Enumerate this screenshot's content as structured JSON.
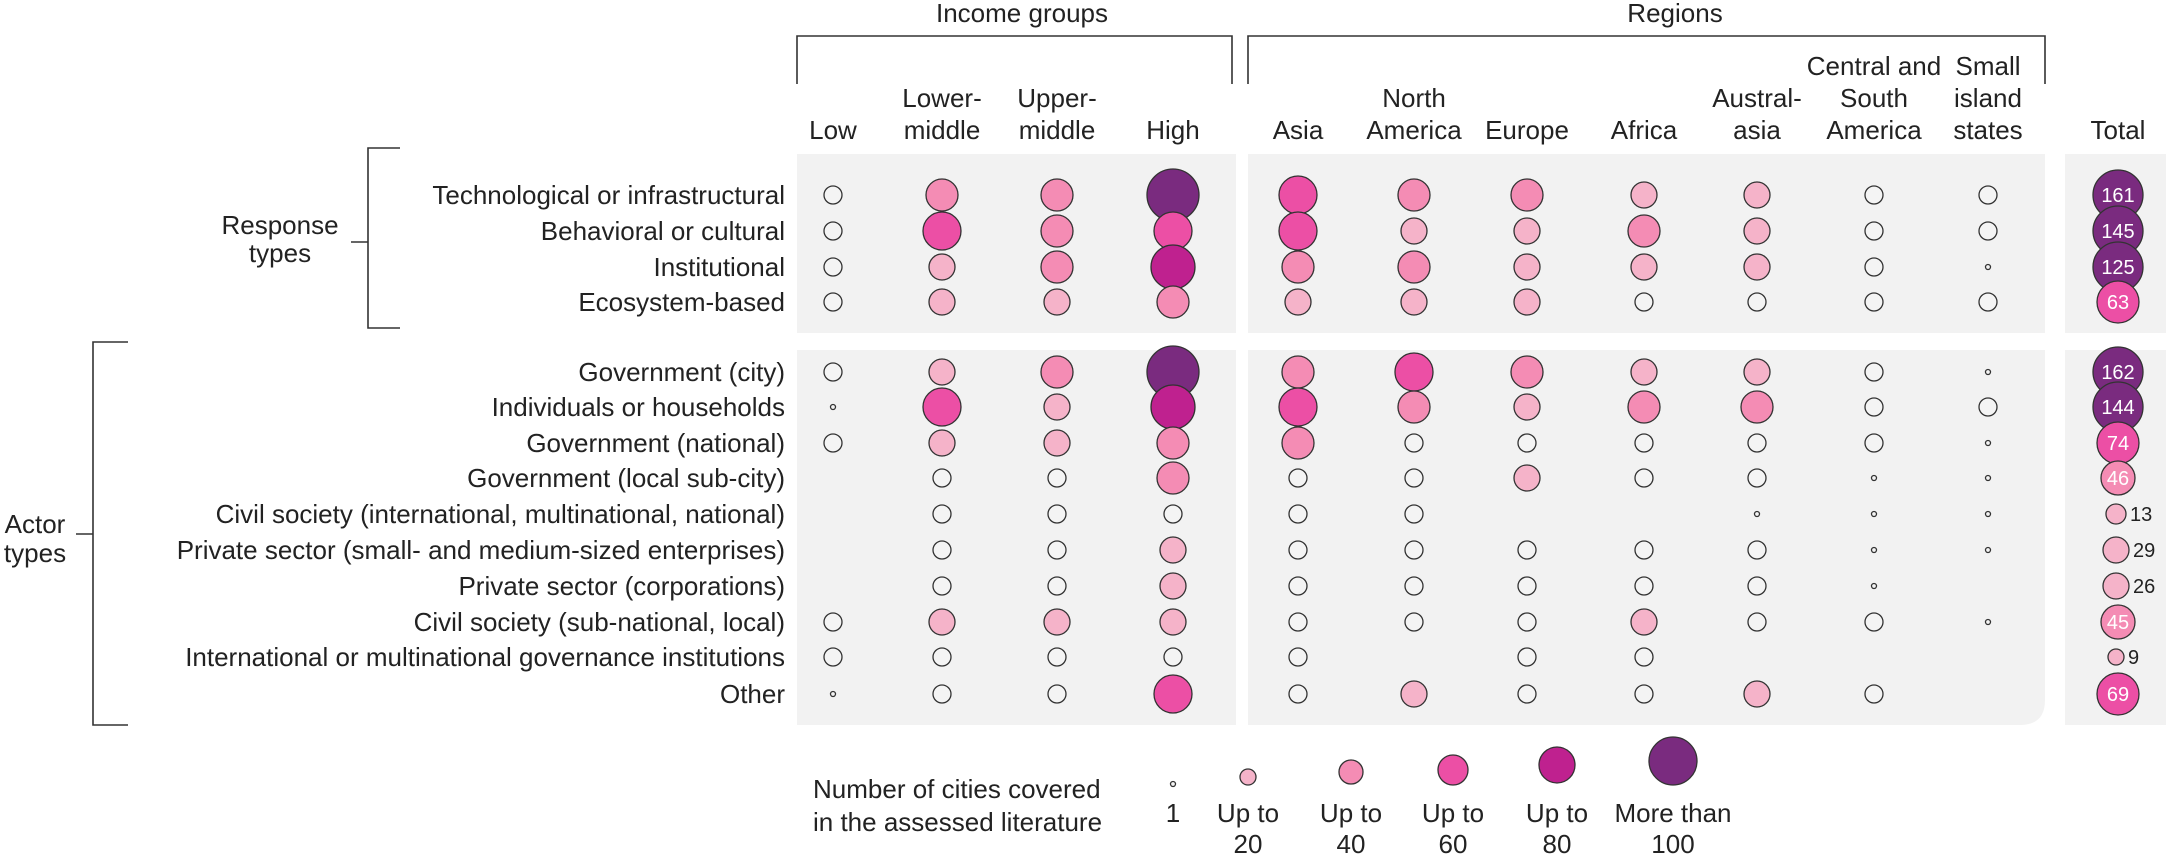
{
  "chart_data": {
    "type": "bubble-matrix",
    "group_headers": {
      "income": "Income groups",
      "regions": "Regions",
      "total": "Total"
    },
    "columns": [
      {
        "key": "low",
        "label": [
          "Low"
        ],
        "group": "income"
      },
      {
        "key": "lower_middle",
        "label": [
          "Lower-",
          "middle"
        ],
        "group": "income"
      },
      {
        "key": "upper_middle",
        "label": [
          "Upper-",
          "middle"
        ],
        "group": "income"
      },
      {
        "key": "high",
        "label": [
          "High"
        ],
        "group": "income"
      },
      {
        "key": "asia",
        "label": [
          "Asia"
        ],
        "group": "regions"
      },
      {
        "key": "north_america",
        "label": [
          "North",
          "America"
        ],
        "group": "regions"
      },
      {
        "key": "europe",
        "label": [
          "Europe"
        ],
        "group": "regions"
      },
      {
        "key": "africa",
        "label": [
          "Africa"
        ],
        "group": "regions"
      },
      {
        "key": "australasia",
        "label": [
          "Austral-",
          "asia"
        ],
        "group": "regions"
      },
      {
        "key": "central_south_america",
        "label": [
          "Central and",
          "South",
          "America"
        ],
        "group": "regions"
      },
      {
        "key": "small_island_states",
        "label": [
          "Small",
          "island",
          "states"
        ],
        "group": "regions"
      }
    ],
    "row_groups": [
      {
        "name": [
          "Response",
          "types"
        ],
        "rows": [
          {
            "label": "Technological or infrastructural",
            "levels": [
              1,
              3,
              3,
              6,
              4,
              3,
              3,
              2,
              2,
              1,
              1
            ],
            "total": 161
          },
          {
            "label": "Behavioral or cultural",
            "levels": [
              1,
              4,
              3,
              4,
              4,
              2,
              2,
              3,
              2,
              1,
              1
            ],
            "total": 145
          },
          {
            "label": "Institutional",
            "levels": [
              1,
              2,
              3,
              5,
              3,
              3,
              2,
              2,
              2,
              1,
              0
            ],
            "total": 125
          },
          {
            "label": "Ecosystem-based",
            "levels": [
              1,
              2,
              2,
              3,
              2,
              2,
              2,
              1,
              1,
              1,
              1
            ],
            "total": 63
          }
        ]
      },
      {
        "name": [
          "Actor",
          "types"
        ],
        "rows": [
          {
            "label": "Government (city)",
            "levels": [
              1,
              2,
              3,
              6,
              3,
              4,
              3,
              2,
              2,
              1,
              0
            ],
            "total": 162
          },
          {
            "label": "Individuals or households",
            "levels": [
              0,
              4,
              2,
              5,
              4,
              3,
              2,
              3,
              3,
              1,
              1
            ],
            "total": 144
          },
          {
            "label": "Government (national)",
            "levels": [
              1,
              2,
              2,
              3,
              3,
              1,
              1,
              1,
              1,
              1,
              0
            ],
            "total": 74
          },
          {
            "label": "Government (local sub-city)",
            "levels": [
              null,
              1,
              1,
              3,
              1,
              1,
              2,
              1,
              1,
              0,
              0
            ],
            "total": 46
          },
          {
            "label": "Civil society (international, multinational, national)",
            "levels": [
              null,
              1,
              1,
              1,
              1,
              1,
              null,
              null,
              0,
              0,
              0
            ],
            "total": 13
          },
          {
            "label": "Private sector (small- and medium-sized enterprises)",
            "levels": [
              null,
              1,
              1,
              2,
              1,
              1,
              1,
              1,
              1,
              0,
              0
            ],
            "total": 29
          },
          {
            "label": "Private sector (corporations)",
            "levels": [
              null,
              1,
              1,
              2,
              1,
              1,
              1,
              1,
              1,
              0,
              null
            ],
            "total": 26
          },
          {
            "label": "Civil society (sub-national, local)",
            "levels": [
              1,
              2,
              2,
              2,
              1,
              1,
              1,
              2,
              1,
              1,
              0
            ],
            "total": 45
          },
          {
            "label": "International or multinational governance institutions",
            "levels": [
              1,
              1,
              1,
              1,
              1,
              null,
              1,
              1,
              null,
              null,
              null
            ],
            "total": 9
          },
          {
            "label": "Other",
            "levels": [
              0,
              1,
              1,
              4,
              1,
              2,
              1,
              1,
              2,
              1,
              null
            ],
            "total": 69
          }
        ]
      }
    ],
    "level_scale": [
      1,
      20,
      40,
      60,
      80,
      100
    ],
    "legend": {
      "title": [
        "Number of cities covered",
        "in the assessed literature"
      ],
      "items": [
        {
          "label": [
            "1"
          ]
        },
        {
          "label": [
            "Up to",
            "20"
          ]
        },
        {
          "label": [
            "Up to",
            "40"
          ]
        },
        {
          "label": [
            "Up to",
            "60"
          ]
        },
        {
          "label": [
            "Up to",
            "80"
          ]
        },
        {
          "label": [
            "More than",
            "100"
          ]
        }
      ]
    },
    "colors": [
      "#f4f4f4",
      "#f5b3c9",
      "#f48cb4",
      "#ec4fa5",
      "#bf218f",
      "#7a2b7f"
    ]
  }
}
